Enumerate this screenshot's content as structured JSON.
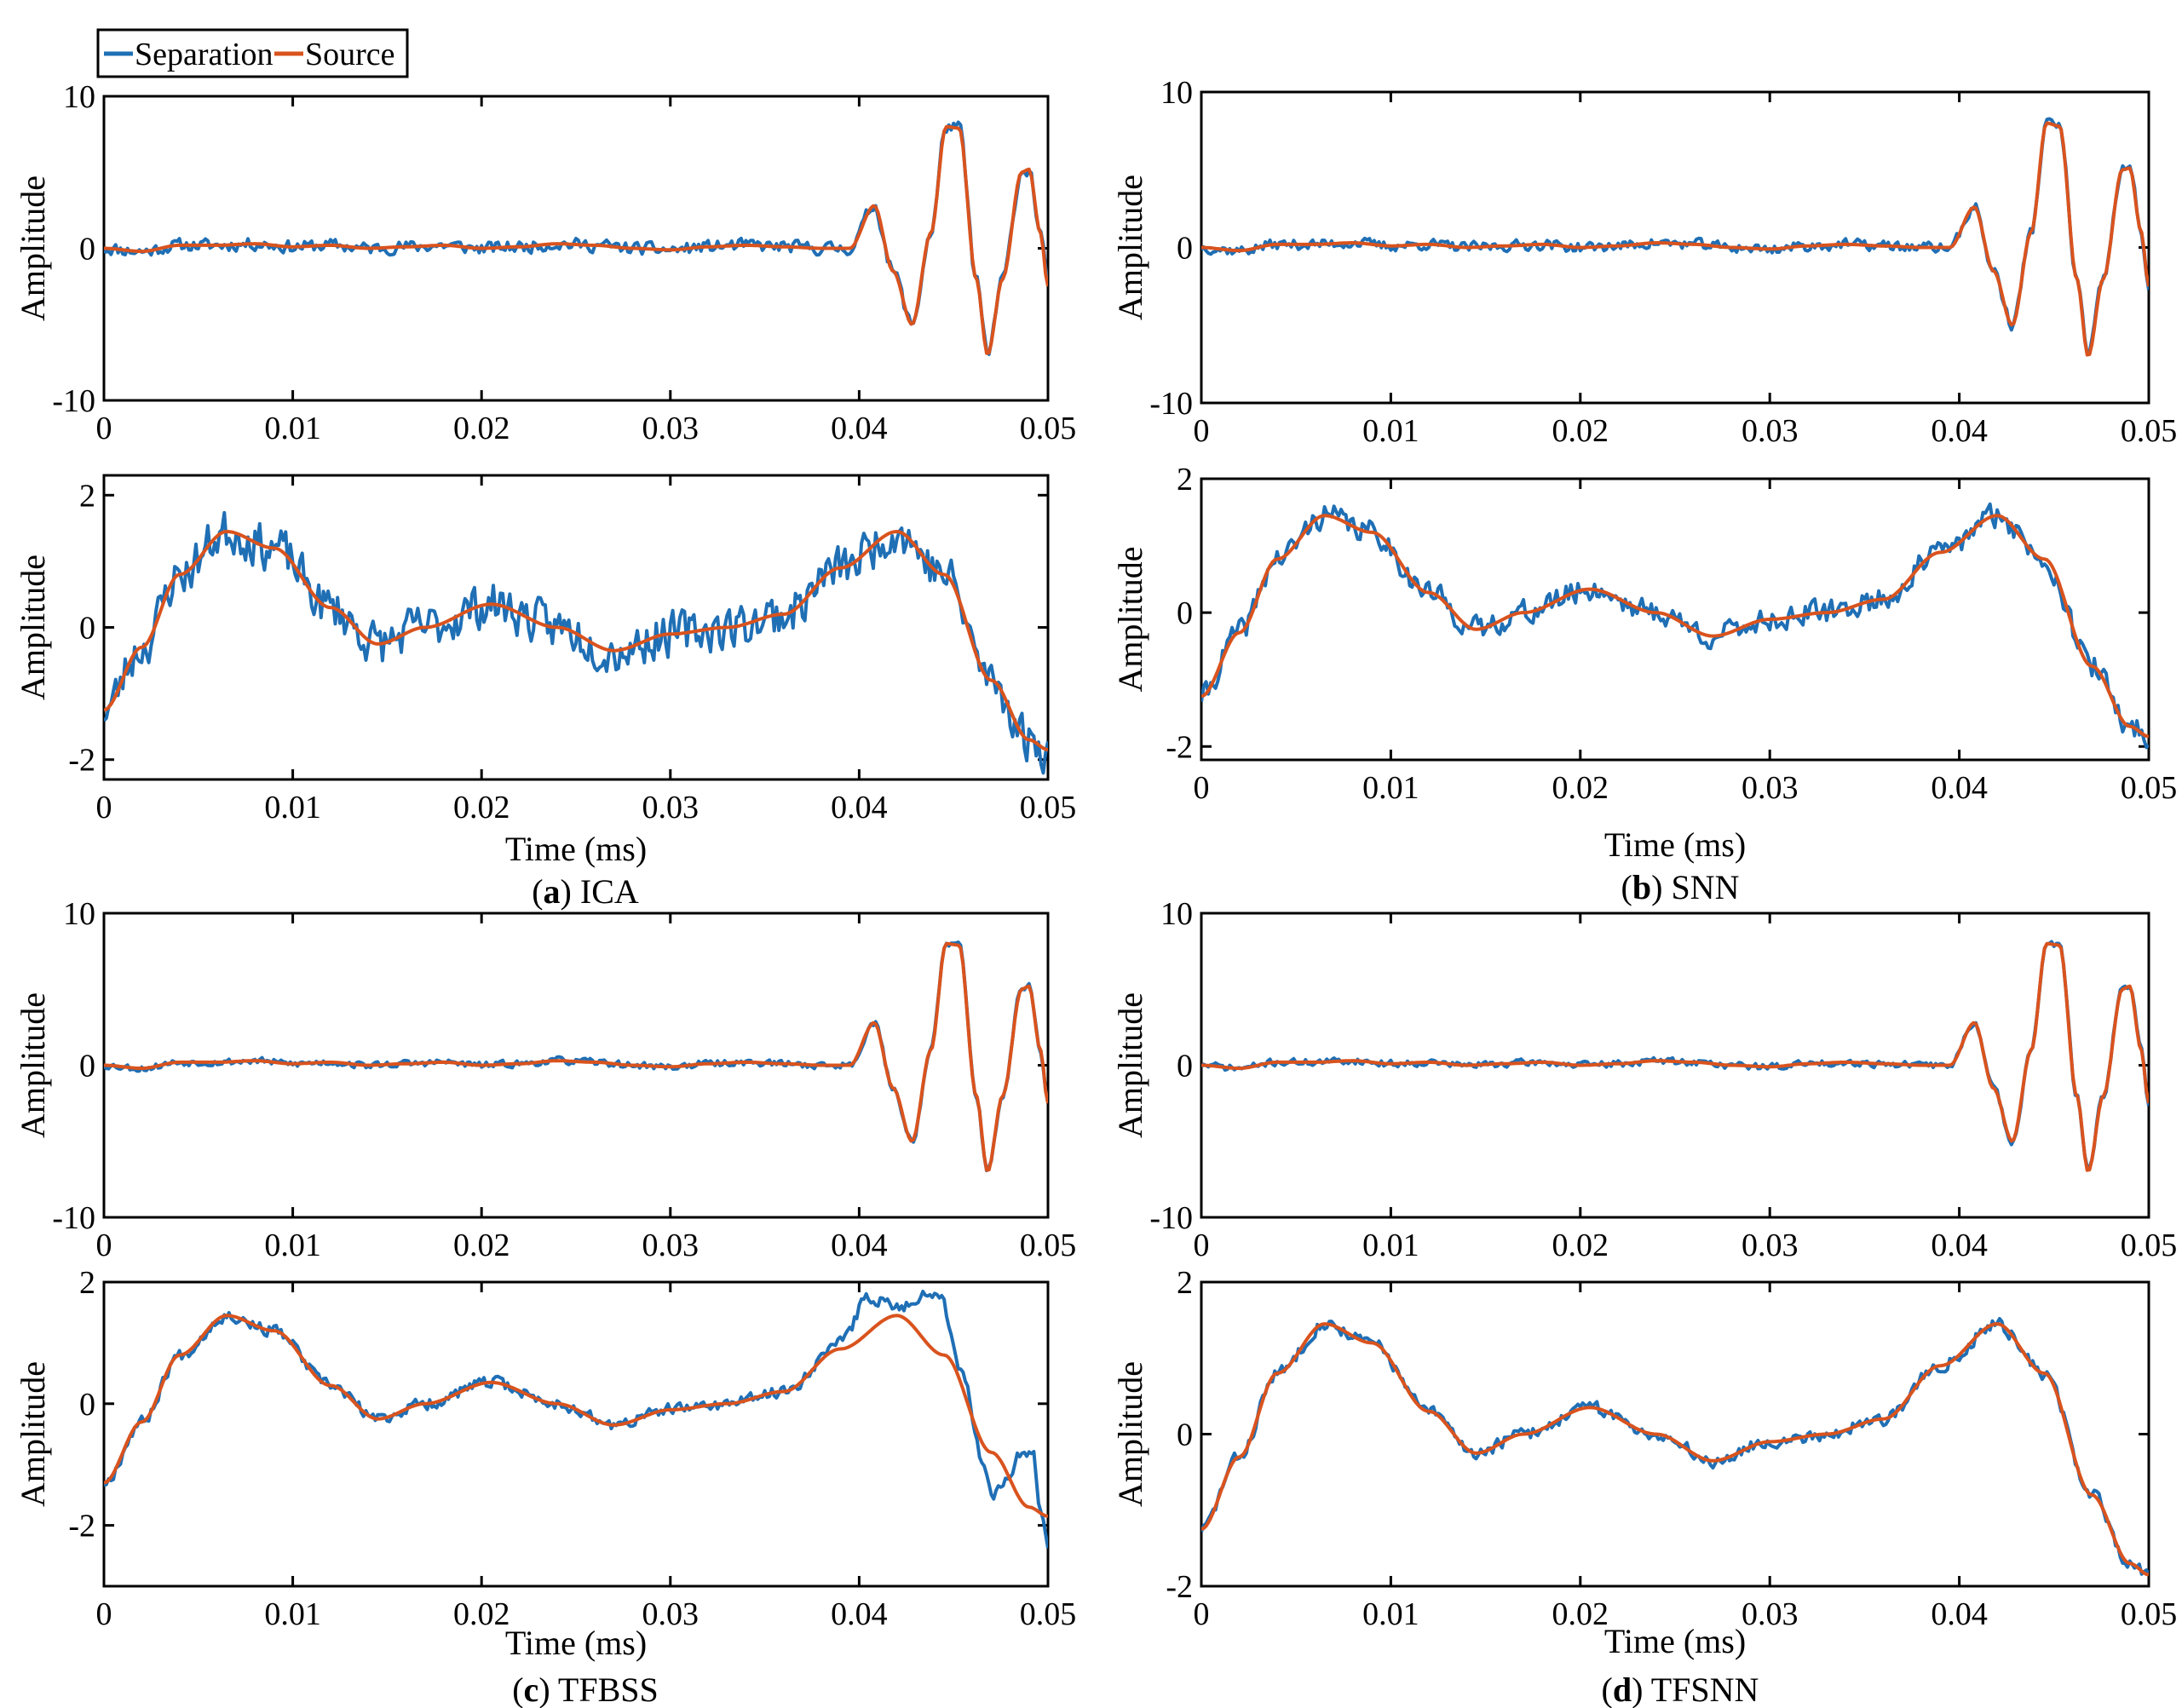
{
  "legend": {
    "items": [
      {
        "label": "Separation",
        "color": "#1f6fb5"
      },
      {
        "label": "Source",
        "color": "#d9531e"
      }
    ]
  },
  "captions": [
    {
      "letter": "a",
      "text": "ICA"
    },
    {
      "letter": "b",
      "text": "SNN"
    },
    {
      "letter": "c",
      "text": "TFBSS"
    },
    {
      "letter": "d",
      "text": "TFSNN"
    }
  ],
  "chart_data": [
    {
      "id": "a-top",
      "type": "line",
      "panel": "a",
      "title": "",
      "xlabel": "",
      "ylabel": "Amplitude",
      "xlim": [
        0,
        0.05
      ],
      "ylim": [
        -10,
        10
      ],
      "xticks": [
        "0",
        "0.01",
        "0.02",
        "0.03",
        "0.04",
        "0.05"
      ],
      "yticks": [
        "10",
        "0",
        "-10"
      ],
      "noise": 0.55,
      "seed": 11,
      "series": [
        {
          "name": "Separation",
          "color": "#1f6fb5"
        },
        {
          "name": "Source",
          "color": "#d9531e"
        }
      ],
      "source_x": [
        0,
        0.002,
        0.004,
        0.006,
        0.008,
        0.01,
        0.012,
        0.014,
        0.016,
        0.018,
        0.02,
        0.022,
        0.024,
        0.026,
        0.028,
        0.03,
        0.032,
        0.034,
        0.036,
        0.038,
        0.0395,
        0.0408,
        0.0418,
        0.0428,
        0.0438,
        0.0446,
        0.0453,
        0.0462,
        0.0468,
        0.0476,
        0.0486,
        0.049,
        0.0496,
        0.05
      ],
      "source_y": [
        0,
        -0.2,
        0.2,
        0.2,
        0.3,
        0.1,
        0.2,
        0,
        0.1,
        0.2,
        0,
        0.1,
        0.3,
        0.2,
        0,
        -0.1,
        0.1,
        0.2,
        0.1,
        0,
        0,
        2.8,
        -1.5,
        -5,
        1,
        8,
        7.9,
        -2,
        -7,
        -2,
        5,
        5.2,
        1,
        -2.5
      ]
    },
    {
      "id": "a-bottom",
      "type": "line",
      "panel": "a",
      "title": "",
      "xlabel": "Time (ms)",
      "ylabel": "Amplitude",
      "xlim": [
        0,
        0.05
      ],
      "ylim": [
        -2.3,
        2.3
      ],
      "xticks": [
        "0",
        "0.01",
        "0.02",
        "0.03",
        "0.04",
        "0.05"
      ],
      "yticks": [
        "2",
        "0",
        "-2"
      ],
      "noise": 0.45,
      "seed": 23,
      "series": [
        {
          "name": "Separation",
          "color": "#1f6fb5"
        },
        {
          "name": "Source",
          "color": "#d9531e"
        }
      ],
      "source_x": [
        0,
        0.002,
        0.004,
        0.0065,
        0.009,
        0.012,
        0.0145,
        0.017,
        0.0205,
        0.024,
        0.027,
        0.03,
        0.033,
        0.036,
        0.039,
        0.042,
        0.0445,
        0.047,
        0.049,
        0.05
      ],
      "source_y": [
        -1.25,
        -0.3,
        0.8,
        1.45,
        1.2,
        0.3,
        -0.25,
        0,
        0.35,
        0,
        -0.35,
        -0.1,
        0,
        0.2,
        0.9,
        1.45,
        0.8,
        -0.8,
        -1.7,
        -1.85
      ]
    },
    {
      "id": "b-top",
      "type": "line",
      "panel": "b",
      "title": "",
      "xlabel": "",
      "ylabel": "Amplitude",
      "xlim": [
        0,
        0.05
      ],
      "ylim": [
        -10,
        10
      ],
      "xticks": [
        "0",
        "0.01",
        "0.02",
        "0.03",
        "0.04",
        "0.05"
      ],
      "yticks": [
        "10",
        "0",
        "-10"
      ],
      "noise": 0.45,
      "seed": 37,
      "series": [
        {
          "name": "Separation",
          "color": "#1f6fb5"
        },
        {
          "name": "Source",
          "color": "#d9531e"
        }
      ],
      "source_x": [
        0,
        0.002,
        0.004,
        0.006,
        0.008,
        0.01,
        0.012,
        0.014,
        0.016,
        0.018,
        0.02,
        0.022,
        0.024,
        0.026,
        0.028,
        0.03,
        0.032,
        0.034,
        0.036,
        0.038,
        0.0395,
        0.0408,
        0.0418,
        0.0428,
        0.0438,
        0.0446,
        0.0453,
        0.0462,
        0.0468,
        0.0476,
        0.0486,
        0.049,
        0.0496,
        0.05
      ],
      "source_y": [
        0,
        -0.2,
        0.2,
        0.2,
        0.3,
        0.1,
        0.2,
        0,
        0.1,
        0.2,
        0,
        0.1,
        0.3,
        0.2,
        0,
        -0.1,
        0.1,
        0.2,
        0.1,
        0,
        0,
        2.6,
        -1.5,
        -5,
        1,
        8,
        7.8,
        -2,
        -7,
        -2,
        5,
        5.1,
        1,
        -2.5
      ]
    },
    {
      "id": "b-bottom",
      "type": "line",
      "panel": "b",
      "title": "",
      "xlabel": "Time (ms)",
      "ylabel": "Amplitude",
      "xlim": [
        0,
        0.05
      ],
      "ylim": [
        -2.2,
        2
      ],
      "xticks": [
        "0",
        "0.01",
        "0.02",
        "0.03",
        "0.04",
        "0.05"
      ],
      "yticks": [
        "2",
        "0",
        "-2"
      ],
      "noise": 0.24,
      "seed": 41,
      "series": [
        {
          "name": "Separation",
          "color": "#1f6fb5"
        },
        {
          "name": "Source",
          "color": "#d9531e"
        }
      ],
      "source_x": [
        0,
        0.002,
        0.004,
        0.0065,
        0.009,
        0.012,
        0.0145,
        0.017,
        0.0205,
        0.024,
        0.027,
        0.03,
        0.033,
        0.036,
        0.039,
        0.042,
        0.0445,
        0.047,
        0.049,
        0.05
      ],
      "source_y": [
        -1.25,
        -0.3,
        0.8,
        1.45,
        1.2,
        0.3,
        -0.25,
        0,
        0.35,
        0,
        -0.35,
        -0.1,
        0,
        0.2,
        0.9,
        1.45,
        0.8,
        -0.8,
        -1.7,
        -1.85
      ]
    },
    {
      "id": "c-top",
      "type": "line",
      "panel": "c",
      "title": "",
      "xlabel": "",
      "ylabel": "Amplitude",
      "xlim": [
        0,
        0.05
      ],
      "ylim": [
        -10,
        10
      ],
      "xticks": [
        "0",
        "0.01",
        "0.02",
        "0.03",
        "0.04",
        "0.05"
      ],
      "yticks": [
        "10",
        "0",
        "-10"
      ],
      "noise": 0.3,
      "seed": 53,
      "series": [
        {
          "name": "Separation",
          "color": "#1f6fb5"
        },
        {
          "name": "Source",
          "color": "#d9531e"
        }
      ],
      "source_x": [
        0,
        0.002,
        0.004,
        0.006,
        0.008,
        0.01,
        0.012,
        0.014,
        0.016,
        0.018,
        0.02,
        0.022,
        0.024,
        0.026,
        0.028,
        0.03,
        0.032,
        0.034,
        0.036,
        0.038,
        0.0395,
        0.0408,
        0.0418,
        0.0428,
        0.0438,
        0.0446,
        0.0453,
        0.0462,
        0.0468,
        0.0476,
        0.0486,
        0.049,
        0.0496,
        0.05
      ],
      "source_y": [
        0,
        -0.2,
        0.2,
        0.2,
        0.3,
        0.1,
        0.2,
        0,
        0.1,
        0.2,
        0,
        0.1,
        0.3,
        0.2,
        0,
        -0.1,
        0.1,
        0.2,
        0.1,
        0,
        0,
        2.8,
        -1.5,
        -5,
        1,
        8,
        7.9,
        -2,
        -7,
        -2,
        5,
        5.2,
        1,
        -2.5
      ]
    },
    {
      "id": "c-bottom",
      "type": "line",
      "panel": "c",
      "title": "",
      "xlabel": "Time (ms)",
      "ylabel": "Amplitude",
      "xlim": [
        0,
        0.05
      ],
      "ylim": [
        -3,
        2
      ],
      "xticks": [
        "0",
        "0.01",
        "0.02",
        "0.03",
        "0.04",
        "0.05"
      ],
      "yticks": [
        "2",
        "0",
        "-2"
      ],
      "noise": 0.13,
      "seed": 67,
      "series": [
        {
          "name": "Separation",
          "color": "#1f6fb5"
        },
        {
          "name": "Source",
          "color": "#d9531e"
        }
      ],
      "source_x": [
        0,
        0.002,
        0.004,
        0.0065,
        0.009,
        0.012,
        0.0145,
        0.017,
        0.0205,
        0.024,
        0.027,
        0.03,
        0.033,
        0.036,
        0.039,
        0.042,
        0.0445,
        0.047,
        0.049,
        0.05
      ],
      "source_y": [
        -1.3,
        -0.3,
        0.8,
        1.45,
        1.2,
        0.3,
        -0.25,
        0,
        0.35,
        0,
        -0.35,
        -0.1,
        0,
        0.2,
        0.9,
        1.45,
        0.8,
        -0.8,
        -1.7,
        -1.85
      ],
      "sep_x": [
        0,
        0.002,
        0.004,
        0.0065,
        0.009,
        0.012,
        0.0145,
        0.017,
        0.0205,
        0.024,
        0.027,
        0.03,
        0.033,
        0.036,
        0.039,
        0.0405,
        0.042,
        0.0442,
        0.0455,
        0.0465,
        0.047,
        0.0478,
        0.0486,
        0.0492,
        0.0496,
        0.05
      ],
      "sep_y": [
        -1.3,
        -0.3,
        0.8,
        1.45,
        1.2,
        0.3,
        -0.25,
        0,
        0.35,
        0,
        -0.35,
        -0.1,
        0,
        0.2,
        1,
        1.75,
        1.6,
        1.85,
        0.5,
        -0.9,
        -1.5,
        -1.2,
        -0.8,
        -0.8,
        -1.7,
        -2.3
      ]
    },
    {
      "id": "d-top",
      "type": "line",
      "panel": "d",
      "title": "",
      "xlabel": "",
      "ylabel": "Amplitude",
      "xlim": [
        0,
        0.05
      ],
      "ylim": [
        -10,
        10
      ],
      "xticks": [
        "0",
        "0.01",
        "0.02",
        "0.03",
        "0.04",
        "0.05"
      ],
      "yticks": [
        "10",
        "0",
        "-10"
      ],
      "noise": 0.3,
      "seed": 71,
      "series": [
        {
          "name": "Separation",
          "color": "#1f6fb5"
        },
        {
          "name": "Source",
          "color": "#d9531e"
        }
      ],
      "source_x": [
        0,
        0.002,
        0.004,
        0.006,
        0.008,
        0.01,
        0.012,
        0.014,
        0.016,
        0.018,
        0.02,
        0.022,
        0.024,
        0.026,
        0.028,
        0.03,
        0.032,
        0.034,
        0.036,
        0.038,
        0.0395,
        0.0408,
        0.0418,
        0.0428,
        0.0438,
        0.0446,
        0.0453,
        0.0462,
        0.0468,
        0.0476,
        0.0486,
        0.049,
        0.0496,
        0.05
      ],
      "source_y": [
        0,
        -0.2,
        0.2,
        0.2,
        0.3,
        0.1,
        0.2,
        0,
        0.1,
        0.2,
        0,
        0.1,
        0.3,
        0.2,
        0,
        -0.1,
        0.1,
        0.2,
        0.1,
        0,
        0,
        2.8,
        -1.5,
        -5,
        1,
        8,
        7.9,
        -2,
        -7,
        -2,
        5,
        5.2,
        1,
        -2.5
      ]
    },
    {
      "id": "d-bottom",
      "type": "line",
      "panel": "d",
      "title": "",
      "xlabel": "Time (ms)",
      "ylabel": "Amplitude",
      "xlim": [
        0,
        0.05
      ],
      "ylim": [
        -2,
        2
      ],
      "xticks": [
        "0",
        "0.01",
        "0.02",
        "0.03",
        "0.04",
        "0.05"
      ],
      "yticks": [
        "2",
        "0",
        "-2"
      ],
      "noise": 0.11,
      "seed": 83,
      "series": [
        {
          "name": "Separation",
          "color": "#1f6fb5"
        },
        {
          "name": "Source",
          "color": "#d9531e"
        }
      ],
      "source_x": [
        0,
        0.002,
        0.004,
        0.0065,
        0.009,
        0.012,
        0.0145,
        0.017,
        0.0205,
        0.024,
        0.027,
        0.03,
        0.033,
        0.036,
        0.039,
        0.042,
        0.0445,
        0.047,
        0.049,
        0.05
      ],
      "source_y": [
        -1.25,
        -0.3,
        0.8,
        1.45,
        1.2,
        0.3,
        -0.25,
        0,
        0.35,
        0,
        -0.35,
        -0.1,
        0,
        0.2,
        0.9,
        1.45,
        0.8,
        -0.8,
        -1.7,
        -1.85
      ]
    }
  ]
}
